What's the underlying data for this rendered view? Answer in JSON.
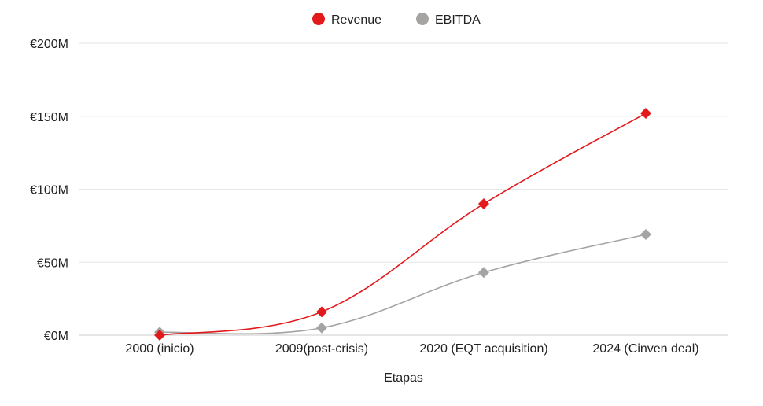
{
  "chart_data": {
    "type": "line",
    "title": "",
    "xlabel": "Etapas",
    "ylabel": "",
    "categories": [
      "2000 (inicio)",
      "2009(post-crisis)",
      "2020 (EQT acquisition)",
      "2024 (Cinven deal)"
    ],
    "y_ticks": [
      "€0M",
      "€50M",
      "€100M",
      "€150M",
      "€200M"
    ],
    "ylim": [
      0,
      200
    ],
    "y_unit": "€M",
    "grid": "horizontal",
    "legend_position": "top-center",
    "curve": "smooth",
    "series": [
      {
        "name": "Revenue",
        "color": "#e31a1c",
        "marker": "diamond",
        "values": [
          0,
          16,
          90,
          152
        ]
      },
      {
        "name": "EBITDA",
        "color": "#a6a3a3",
        "marker": "diamond",
        "values": [
          2,
          5,
          43,
          69
        ]
      }
    ]
  }
}
